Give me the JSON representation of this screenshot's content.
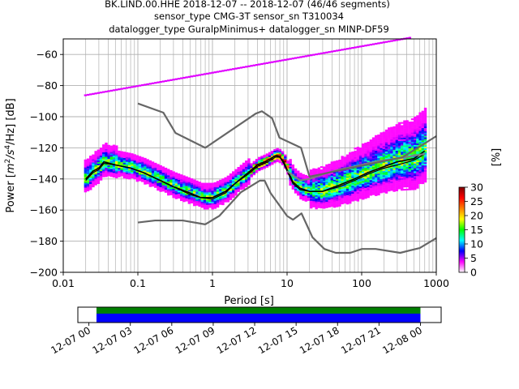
{
  "chart_data": [
    {
      "type": "heatmap",
      "title_lines": [
        "BK.LIND.00.HHE   2018-12-07 -- 2018-12-07  (46/46 segments)",
        "sensor_type CMG-3T sensor_sn T310034",
        "datalogger_type GuralpMinimus+ datalogger_sn MINP-DF59"
      ],
      "xlabel": "Period [s]",
      "ylabel_prefix": "Power [",
      "ylabel_m": "m",
      "ylabel_sup1": "2",
      "ylabel_s": "/s",
      "ylabel_sup2": "4",
      "ylabel_suffix": "/Hz] [dB]",
      "xscale": "log",
      "xlim": [
        0.01,
        1000
      ],
      "ylim": [
        -200,
        -50
      ],
      "x_ticks": [
        0.01,
        0.1,
        1,
        10,
        100,
        1000
      ],
      "x_tick_labels": [
        "0.01",
        "0.1",
        "1",
        "10",
        "100",
        "1000"
      ],
      "y_ticks": [
        -200,
        -180,
        -160,
        -140,
        -120,
        -100,
        -80,
        -60
      ],
      "y_tick_labels": [
        "−200",
        "−180",
        "−160",
        "−140",
        "−120",
        "−100",
        "−80",
        "−60"
      ],
      "grid": true,
      "series": [
        {
          "role": "mode",
          "x": [
            0.02,
            0.025,
            0.03,
            0.035,
            0.05,
            0.08,
            0.12,
            0.2,
            0.3,
            0.5,
            0.7,
            1.0,
            1.5,
            2.0,
            3.0,
            4.0,
            5.0,
            6.0,
            7.0,
            8.0,
            9.0,
            10.0,
            12.0,
            15.0,
            20.0,
            30.0,
            50.0,
            80.0,
            120.0,
            200.0,
            300.0,
            500.0,
            700.0
          ],
          "y": [
            -140,
            -135,
            -133,
            -129,
            -131,
            -133,
            -136,
            -141,
            -145,
            -149,
            -152,
            -152,
            -148,
            -143,
            -136,
            -131,
            -129,
            -127,
            -125,
            -126,
            -129,
            -134,
            -142,
            -146,
            -148,
            -148,
            -144,
            -140,
            -136,
            -132,
            -129,
            -127,
            -122
          ]
        },
        {
          "role": "median",
          "x": [
            0.02,
            0.025,
            0.03,
            0.035,
            0.05,
            0.08,
            0.12,
            0.2,
            0.3,
            0.5,
            0.7,
            1.0,
            1.5,
            2.0,
            3.0,
            4.0,
            5.0,
            6.0,
            7.0,
            8.0,
            9.0,
            10.0,
            12.0,
            15.0,
            20.0,
            30.0,
            50.0,
            80.0,
            120.0,
            200.0,
            300.0,
            500.0,
            700.0
          ],
          "y": [
            -141,
            -136,
            -134,
            -130,
            -131,
            -133,
            -136,
            -141,
            -145,
            -150,
            -152,
            -153,
            -149,
            -143,
            -137,
            -132,
            -130,
            -128,
            -126,
            -126,
            -130,
            -135,
            -143,
            -147,
            -148,
            -148,
            -145,
            -141,
            -137,
            -133,
            -131,
            -128,
            -124
          ]
        },
        {
          "role": "mean",
          "x": [
            10.0,
            15.0,
            20.0,
            30.0,
            50.0,
            80.0,
            120.0,
            200.0,
            300.0,
            500.0,
            700.0
          ],
          "y": [
            -135,
            -141,
            -140,
            -137,
            -134,
            -132,
            -130,
            -128,
            -127,
            -125,
            -124
          ]
        },
        {
          "role": "new_high_noise_model",
          "x": [
            0.1,
            0.22,
            0.32,
            0.8,
            3.8,
            4.6,
            6.3,
            7.9,
            15.4,
            20.0,
            354.8,
            1000.0
          ],
          "y": [
            -91.5,
            -97.4,
            -110.5,
            -120.0,
            -98.0,
            -96.5,
            -101.0,
            -113.5,
            -120.0,
            -138.5,
            -126.0,
            -112.5
          ]
        },
        {
          "role": "new_low_noise_model",
          "x": [
            0.1,
            0.17,
            0.4,
            0.8,
            1.24,
            2.4,
            4.3,
            5.0,
            6.0,
            10.0,
            12.0,
            15.6,
            21.9,
            31.6,
            45.0,
            70.0,
            101.0,
            154.0,
            328.0,
            600.0,
            1000.0
          ],
          "y": [
            -168.0,
            -166.7,
            -166.7,
            -169.2,
            -163.7,
            -148.6,
            -141.1,
            -141.1,
            -149.0,
            -163.8,
            -166.2,
            -162.1,
            -177.5,
            -185.0,
            -187.5,
            -187.5,
            -185.0,
            -185.0,
            -187.5,
            -184.4,
            -178.0
          ]
        }
      ],
      "colorbar": {
        "label": "[%]",
        "ticks": [
          0,
          5,
          10,
          15,
          20,
          25,
          30
        ],
        "tick_labels": [
          "0",
          "5",
          "10",
          "15",
          "20",
          "25",
          "30"
        ],
        "range": [
          0,
          30
        ],
        "colormap": [
          "#ffffff",
          "#ff00ff",
          "#0000ff",
          "#00ffff",
          "#00ff00",
          "#ffff00",
          "#ff8000",
          "#ff0000",
          "#800000"
        ]
      }
    },
    {
      "type": "timeline",
      "tick_labels": [
        "12-07 00",
        "12-07 03",
        "12-07 06",
        "12-07 09",
        "12-07 12",
        "12-07 15",
        "12-07 18",
        "12-07 21",
        "12-08 00"
      ],
      "tick_hours": [
        0,
        3,
        6,
        9,
        12,
        15,
        18,
        21,
        24
      ],
      "xlim_hours": [
        -0.8,
        25.5
      ],
      "coverage_hours": [
        0.55,
        24.0
      ],
      "colors": {
        "data": "#0000ff",
        "processed": "#008000"
      }
    }
  ]
}
